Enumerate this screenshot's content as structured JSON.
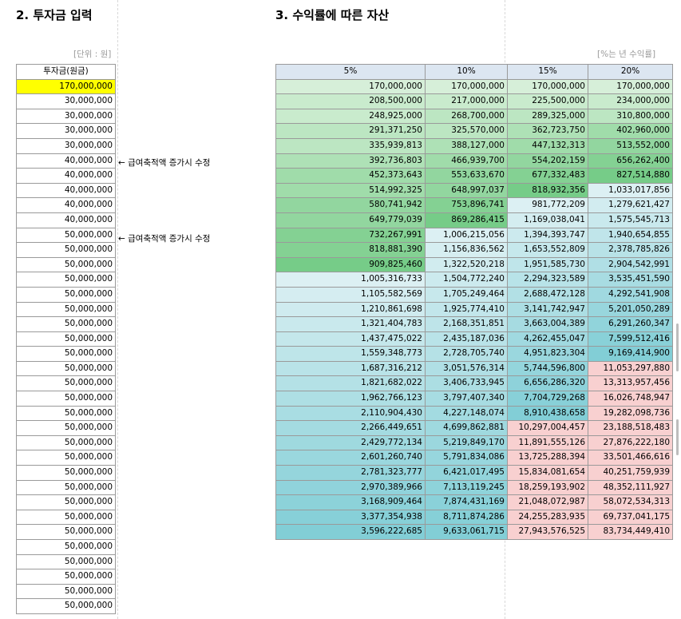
{
  "section2": {
    "title": "2. 투자금 입력",
    "unit": "[단위 : 원]",
    "header": "투자금(원금)"
  },
  "section3": {
    "title": "3. 수익률에 따른 자산",
    "unit": "[%는 년 수익률]",
    "headers": [
      "5%",
      "10%",
      "15%",
      "20%"
    ]
  },
  "notes": [
    {
      "text": "← 급여축적액 증가시 수정",
      "row": 5
    },
    {
      "text": "← 급여축적액 증가시 수정",
      "row": 10
    }
  ],
  "investments": [
    "170,000,000",
    "30,000,000",
    "30,000,000",
    "30,000,000",
    "30,000,000",
    "40,000,000",
    "40,000,000",
    "40,000,000",
    "40,000,000",
    "40,000,000",
    "50,000,000",
    "50,000,000",
    "50,000,000",
    "50,000,000",
    "50,000,000",
    "50,000,000",
    "50,000,000",
    "50,000,000",
    "50,000,000",
    "50,000,000",
    "50,000,000",
    "50,000,000",
    "50,000,000",
    "50,000,000",
    "50,000,000",
    "50,000,000",
    "50,000,000",
    "50,000,000",
    "50,000,000",
    "50,000,000",
    "50,000,000",
    "50,000,000",
    "50,000,000",
    "50,000,000",
    "50,000,000",
    "50,000,000"
  ],
  "assets": [
    [
      "170,000,000",
      "170,000,000",
      "170,000,000",
      "170,000,000"
    ],
    [
      "208,500,000",
      "217,000,000",
      "225,500,000",
      "234,000,000"
    ],
    [
      "248,925,000",
      "268,700,000",
      "289,325,000",
      "310,800,000"
    ],
    [
      "291,371,250",
      "325,570,000",
      "362,723,750",
      "402,960,000"
    ],
    [
      "335,939,813",
      "388,127,000",
      "447,132,313",
      "513,552,000"
    ],
    [
      "392,736,803",
      "466,939,700",
      "554,202,159",
      "656,262,400"
    ],
    [
      "452,373,643",
      "553,633,670",
      "677,332,483",
      "827,514,880"
    ],
    [
      "514,992,325",
      "648,997,037",
      "818,932,356",
      "1,033,017,856"
    ],
    [
      "580,741,942",
      "753,896,741",
      "981,772,209",
      "1,279,621,427"
    ],
    [
      "649,779,039",
      "869,286,415",
      "1,169,038,041",
      "1,575,545,713"
    ],
    [
      "732,267,991",
      "1,006,215,056",
      "1,394,393,747",
      "1,940,654,855"
    ],
    [
      "818,881,390",
      "1,156,836,562",
      "1,653,552,809",
      "2,378,785,826"
    ],
    [
      "909,825,460",
      "1,322,520,218",
      "1,951,585,730",
      "2,904,542,991"
    ],
    [
      "1,005,316,733",
      "1,504,772,240",
      "2,294,323,589",
      "3,535,451,590"
    ],
    [
      "1,105,582,569",
      "1,705,249,464",
      "2,688,472,128",
      "4,292,541,908"
    ],
    [
      "1,210,861,698",
      "1,925,774,410",
      "3,141,742,947",
      "5,201,050,289"
    ],
    [
      "1,321,404,783",
      "2,168,351,851",
      "3,663,004,389",
      "6,291,260,347"
    ],
    [
      "1,437,475,022",
      "2,435,187,036",
      "4,262,455,047",
      "7,599,512,416"
    ],
    [
      "1,559,348,773",
      "2,728,705,740",
      "4,951,823,304",
      "9,169,414,900"
    ],
    [
      "1,687,316,212",
      "3,051,576,314",
      "5,744,596,800",
      "11,053,297,880"
    ],
    [
      "1,821,682,022",
      "3,406,733,945",
      "6,656,286,320",
      "13,313,957,456"
    ],
    [
      "1,962,766,123",
      "3,797,407,340",
      "7,704,729,268",
      "16,026,748,947"
    ],
    [
      "2,110,904,430",
      "4,227,148,074",
      "8,910,438,658",
      "19,282,098,736"
    ],
    [
      "2,266,449,651",
      "4,699,862,881",
      "10,297,004,457",
      "23,188,518,483"
    ],
    [
      "2,429,772,134",
      "5,219,849,170",
      "11,891,555,126",
      "27,876,222,180"
    ],
    [
      "2,601,260,740",
      "5,791,834,086",
      "13,725,288,394",
      "33,501,466,616"
    ],
    [
      "2,781,323,777",
      "6,421,017,495",
      "15,834,081,654",
      "40,251,759,939"
    ],
    [
      "2,970,389,966",
      "7,113,119,245",
      "18,259,193,902",
      "48,352,111,927"
    ],
    [
      "3,168,909,464",
      "7,874,431,169",
      "21,048,072,987",
      "58,072,534,313"
    ],
    [
      "3,377,354,938",
      "8,711,874,286",
      "24,255,283,935",
      "69,737,041,175"
    ],
    [
      "3,596,222,685",
      "9,633,061,715",
      "27,943,576,525",
      "83,734,449,410"
    ]
  ],
  "colors": {
    "highlight": "#ffff00",
    "header": "#dce6f1"
  }
}
